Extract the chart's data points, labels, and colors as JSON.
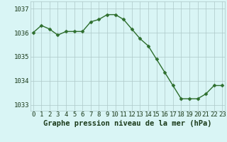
{
  "hours": [
    0,
    1,
    2,
    3,
    4,
    5,
    6,
    7,
    8,
    9,
    10,
    11,
    12,
    13,
    14,
    15,
    16,
    17,
    18,
    19,
    20,
    21,
    22,
    23
  ],
  "pressure": [
    1036.0,
    1036.3,
    1036.15,
    1035.9,
    1036.05,
    1036.05,
    1036.05,
    1036.45,
    1036.55,
    1036.75,
    1036.75,
    1036.55,
    1036.15,
    1035.75,
    1035.45,
    1034.9,
    1034.35,
    1033.8,
    1033.25,
    1033.25,
    1033.25,
    1033.45,
    1033.8,
    1033.8
  ],
  "line_color": "#2d6e2d",
  "marker": "D",
  "marker_size": 2.5,
  "line_width": 1.0,
  "bg_color": "#d9f5f5",
  "grid_color": "#adc8c8",
  "xlabel": "Graphe pression niveau de la mer (hPa)",
  "xlabel_fontsize": 7.5,
  "tick_fontsize": 6.5,
  "ylim": [
    1032.75,
    1037.3
  ],
  "yticks": [
    1033,
    1034,
    1035,
    1036,
    1037
  ],
  "xticks": [
    0,
    1,
    2,
    3,
    4,
    5,
    6,
    7,
    8,
    9,
    10,
    11,
    12,
    13,
    14,
    15,
    16,
    17,
    18,
    19,
    20,
    21,
    22,
    23
  ],
  "xlabel_color": "#1a3a1a",
  "tick_color": "#1a3a1a",
  "grid_alpha": 1.0,
  "grid_linewidth": 0.5
}
